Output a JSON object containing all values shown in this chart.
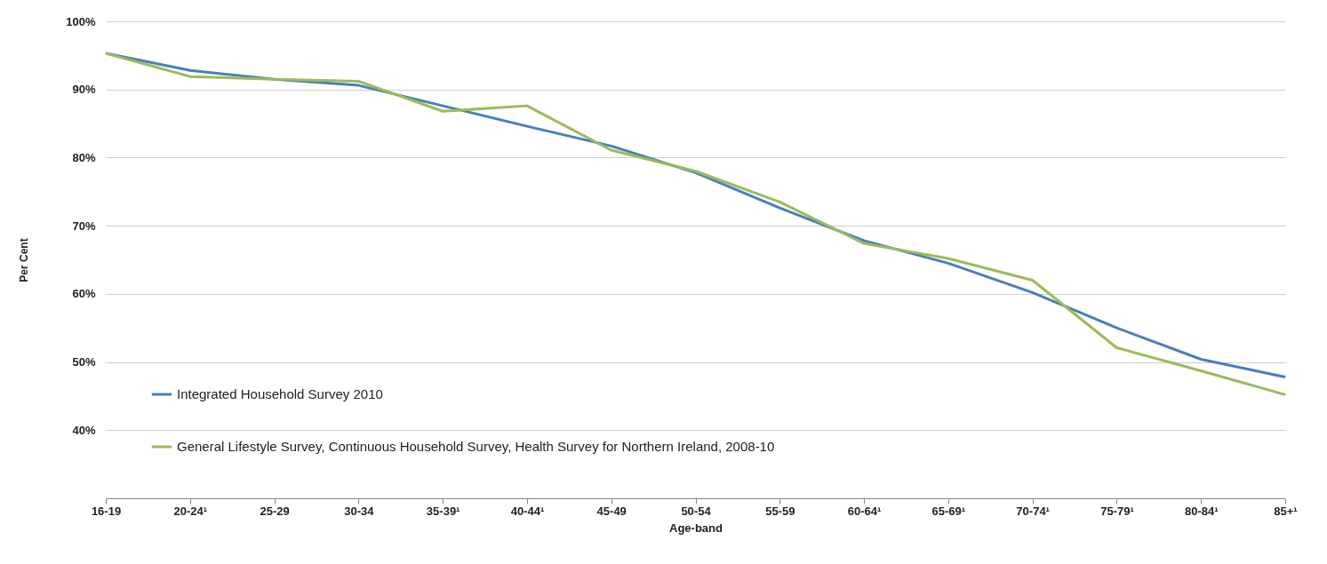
{
  "chart_data": {
    "type": "line",
    "xlabel": "Age-band",
    "ylabel": "Per Cent",
    "categories": [
      "16-19",
      "20-24¹",
      "25-29",
      "30-34",
      "35-39¹",
      "40-44¹",
      "45-49",
      "50-54",
      "55-59",
      "60-64¹",
      "65-69¹",
      "70-74¹",
      "75-79¹",
      "80-84¹",
      "85+¹"
    ],
    "series": [
      {
        "name": "Integrated Household Survey 2010",
        "color": "#4a7ebb",
        "values": [
          95.3,
          92.8,
          91.5,
          90.6,
          87.6,
          84.6,
          81.7,
          77.8,
          72.6,
          67.8,
          64.5,
          60.2,
          55,
          50.4,
          47.8
        ]
      },
      {
        "name": "General Lifestyle Survey, Continuous Household Survey, Health Survey for Northern Ireland, 2008-10",
        "color": "#9bbb59",
        "values": [
          95.3,
          91.9,
          91.5,
          91.2,
          86.8,
          87.6,
          81.1,
          78,
          73.5,
          67.4,
          65.2,
          62,
          52.1,
          48.7,
          45.2
        ]
      }
    ],
    "ylim": [
      30,
      100
    ],
    "yticks": [
      {
        "value": 40,
        "label": "40%"
      },
      {
        "value": 50,
        "label": "50%"
      },
      {
        "value": 60,
        "label": "60%"
      },
      {
        "value": 70,
        "label": "70%"
      },
      {
        "value": 80,
        "label": "80%"
      },
      {
        "value": 90,
        "label": "90%"
      },
      {
        "value": 100,
        "label": "100%"
      }
    ],
    "grid": "y",
    "legend": "bottom left",
    "marker": "none",
    "line_style": "solid"
  }
}
